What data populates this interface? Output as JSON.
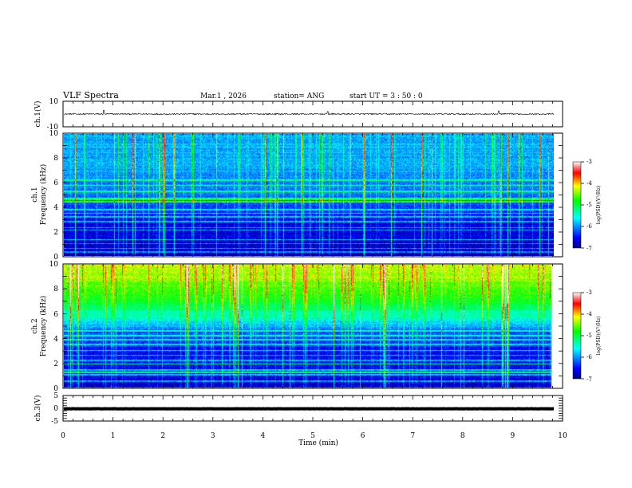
{
  "header": {
    "title": "VLF Spectra",
    "date": "Mar.1  , 2026",
    "station": "station= ANG",
    "start_ut": "start  UT  =   3  : 50 : 0"
  },
  "chart_data": [
    {
      "type": "line",
      "id": "ch1-waveform",
      "ylabel": "ch.1(V)",
      "ylim": [
        -10,
        10
      ],
      "ytick_labels": [
        "10",
        "-10"
      ],
      "xlim": [
        0,
        10
      ],
      "x_end": 9.83,
      "baseline": 0,
      "noise_amplitude": 1.2,
      "spikes": [
        {
          "x": 0.82,
          "y": 3
        },
        {
          "x": 5.3,
          "y": 2
        },
        {
          "x": 8.72,
          "y": 2.5
        }
      ]
    },
    {
      "type": "heatmap",
      "id": "ch1-spectrogram",
      "ylabel": "ch.1\nFrequency  (kHz)",
      "ylabel_lines": [
        "ch.1",
        "Frequency  (kHz)"
      ],
      "ylim": [
        0,
        10
      ],
      "ytick_labels": [
        "0",
        "2",
        "4",
        "6",
        "8",
        "10"
      ],
      "xlim": [
        0,
        10
      ],
      "x_end": 9.83,
      "colorbar": {
        "label": "log(PSD)(V²/Hz)",
        "range": [
          -7,
          -3
        ],
        "tick_labels": [
          "-3",
          "-4",
          "-5",
          "-6",
          "-7"
        ]
      },
      "level_profile_khz": [
        {
          "f": 0,
          "level": -6.8
        },
        {
          "f": 3.0,
          "level": -6.6
        },
        {
          "f": 4.5,
          "level": -6.2
        },
        {
          "f": 6.0,
          "level": -6.0
        },
        {
          "f": 8.0,
          "level": -5.9
        },
        {
          "f": 10,
          "level": -5.9
        }
      ],
      "tone_lines_khz": [
        0.3,
        0.6,
        1.0,
        1.3,
        2.1,
        2.3,
        2.8,
        3.2,
        3.5,
        3.8,
        4.4,
        4.7,
        5.3,
        5.8,
        6.2
      ],
      "bright_bands_khz": [
        4.45,
        4.65
      ]
    },
    {
      "type": "heatmap",
      "id": "ch2-spectrogram",
      "ylabel": "ch.2\nFrequency  (kHz)",
      "ylabel_lines": [
        "ch.2",
        "Frequency  (kHz)"
      ],
      "ylim": [
        0,
        10
      ],
      "ytick_labels": [
        "0",
        "2",
        "4",
        "6",
        "8",
        "10"
      ],
      "xlim": [
        0,
        10
      ],
      "x_end": 9.83,
      "colorbar": {
        "label": "log(PSD)(V²/Hz)",
        "range": [
          -7,
          -3
        ],
        "tick_labels": [
          "-3",
          "-4",
          "-5",
          "-6",
          "-7"
        ]
      },
      "level_profile_khz": [
        {
          "f": 0,
          "level": -6.7
        },
        {
          "f": 3.0,
          "level": -6.5
        },
        {
          "f": 4.5,
          "level": -6.2
        },
        {
          "f": 5.5,
          "level": -5.6
        },
        {
          "f": 7.0,
          "level": -4.9
        },
        {
          "f": 9.0,
          "level": -4.4
        },
        {
          "f": 10,
          "level": -4.3
        }
      ],
      "tone_lines_khz": [
        0.5,
        1.0,
        1.4,
        1.9,
        2.2,
        2.6,
        3.0,
        3.5,
        3.9,
        4.2,
        4.6
      ],
      "bright_bands_khz": [
        1.2,
        1.9
      ]
    },
    {
      "type": "line",
      "id": "ch3-waveform",
      "ylabel": "ch.3(V)",
      "ylim": [
        -5,
        5
      ],
      "ytick_labels": [
        "5",
        "0",
        "-5"
      ],
      "xlim": [
        0,
        10
      ],
      "x_end": 9.83,
      "baseline": -0.2,
      "noise_amplitude": 0.1,
      "spikes": []
    }
  ],
  "x_axis": {
    "label": "Time  (min)",
    "range": [
      0,
      10
    ],
    "tick_labels": [
      "0",
      "1",
      "2",
      "3",
      "4",
      "5",
      "6",
      "7",
      "8",
      "9",
      "10"
    ]
  }
}
